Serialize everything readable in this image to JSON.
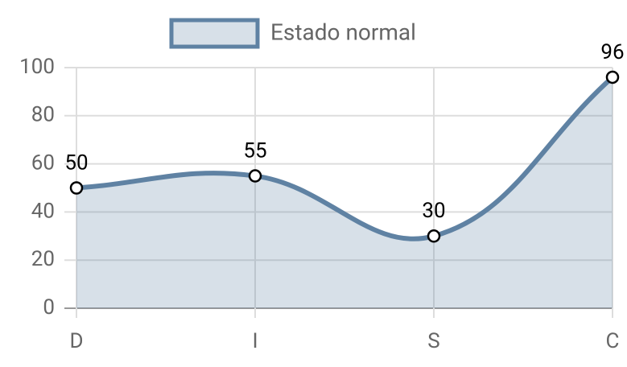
{
  "chart_data": {
    "type": "line",
    "categories": [
      "D",
      "I",
      "S",
      "C"
    ],
    "series": [
      {
        "name": "Estado normal",
        "color": "#5f82a3",
        "values": [
          50,
          55,
          30,
          96
        ]
      }
    ],
    "ylim": [
      0,
      100
    ],
    "yticks": [
      0,
      20,
      40,
      60,
      80,
      100
    ],
    "grid": true,
    "fill": true,
    "legend": "top"
  }
}
